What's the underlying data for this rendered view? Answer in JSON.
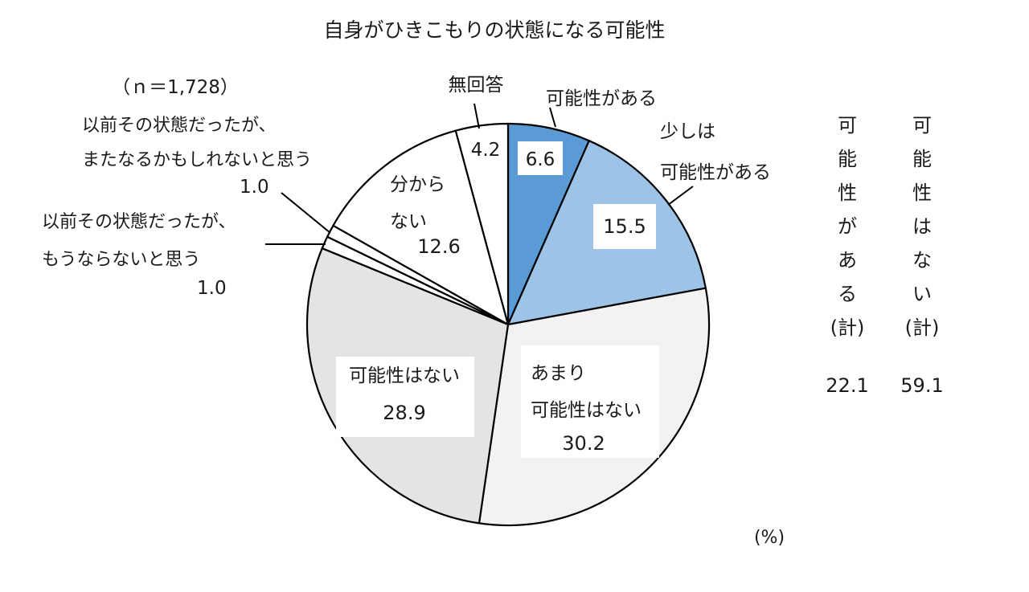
{
  "chart_data": {
    "type": "pie",
    "title": "自身がひきこもりの状態になる可能性",
    "sample": "（ｎ＝1,728）",
    "unit": "(%)",
    "direction": "clockwise-from-top",
    "slices": [
      {
        "key": "a",
        "label": "可能性がある",
        "value": 6.6,
        "value_text": "6.6",
        "color": "#5b9bd5"
      },
      {
        "key": "b",
        "label_lines": [
          "少しは",
          "可能性がある"
        ],
        "value": 15.5,
        "value_text": "15.5",
        "color": "#9dc3e6"
      },
      {
        "key": "c",
        "label_lines": [
          "あまり",
          "可能性はない"
        ],
        "value": 30.2,
        "value_text": "30.2",
        "color": "#f2f2f2"
      },
      {
        "key": "d",
        "label": "可能性はない",
        "value": 28.9,
        "value_text": "28.9",
        "color": "#e4e4e4"
      },
      {
        "key": "e",
        "label_lines": [
          "以前その状態だったが、",
          "もうならないと思う"
        ],
        "value": 1.0,
        "value_text": "1.0",
        "color": "#ffffff"
      },
      {
        "key": "f",
        "label_lines": [
          "以前その状態だったが、",
          "またなるかもしれないと思う"
        ],
        "value": 1.0,
        "value_text": "1.0",
        "color": "#ffffff"
      },
      {
        "key": "g",
        "label_lines": [
          "分から",
          "ない"
        ],
        "value": 12.6,
        "value_text": "12.6",
        "color": "#ffffff"
      },
      {
        "key": "h",
        "label": "無回答",
        "value": 4.2,
        "value_text": "4.2",
        "color": "#ffffff"
      }
    ],
    "totals": [
      {
        "label_chars": [
          "可",
          "能",
          "性",
          "が",
          "あ",
          "る",
          "(計)"
        ],
        "value": "22.1"
      },
      {
        "label_chars": [
          "可",
          "能",
          "性",
          "は",
          "な",
          "い",
          "(計)"
        ],
        "value": "59.1"
      }
    ]
  }
}
